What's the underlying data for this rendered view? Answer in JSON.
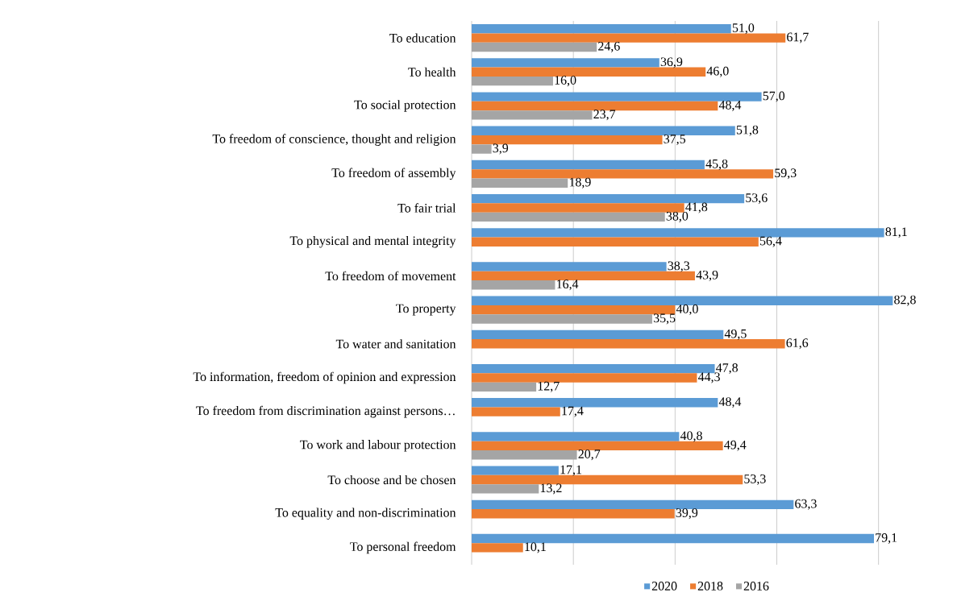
{
  "chart_data": {
    "type": "bar",
    "orientation": "horizontal",
    "categories": [
      "To education",
      "To health",
      "To social protection",
      "To freedom of conscience, thought and religion",
      "To freedom of assembly",
      "To fair trial",
      "To physical and mental integrity",
      "To freedom of movement",
      "To property",
      "To water and sanitation",
      "To information, freedom of opinion and expression",
      "To freedom from discrimination against persons…",
      "To work and labour protection",
      "To choose and be chosen",
      "To equality and non-discrimination",
      "To personal freedom"
    ],
    "series": [
      {
        "name": "2020",
        "color": "#5b9bd5",
        "values": [
          51.0,
          36.9,
          57.0,
          51.8,
          45.8,
          53.6,
          81.1,
          38.3,
          82.8,
          49.5,
          47.8,
          48.4,
          40.8,
          17.1,
          63.3,
          79.1
        ],
        "value_labels": [
          "51,0",
          "36,9",
          "57,0",
          "51,8",
          "45,8",
          "53,6",
          "81,1",
          "38,3",
          "82,8",
          "49,5",
          "47,8",
          "48,4",
          "40,8",
          "17,1",
          "63,3",
          "79,1"
        ]
      },
      {
        "name": "2018",
        "color": "#ed7d31",
        "values": [
          61.7,
          46.0,
          48.4,
          37.5,
          59.3,
          41.8,
          56.4,
          43.9,
          40.0,
          61.6,
          44.3,
          17.4,
          49.4,
          53.3,
          39.9,
          10.1
        ],
        "value_labels": [
          "61,7",
          "46,0",
          "48,4",
          "37,5",
          "59,3",
          "41,8",
          "56,4",
          "43,9",
          "40,0",
          "61,6",
          "44,3",
          "17,4",
          "49,4",
          "53,3",
          "39,9",
          "10,1"
        ]
      },
      {
        "name": "2016",
        "color": "#a5a5a5",
        "values": [
          24.6,
          16.0,
          23.7,
          3.9,
          18.9,
          38.0,
          null,
          16.4,
          35.5,
          null,
          12.7,
          null,
          20.7,
          13.2,
          null,
          null
        ],
        "value_labels": [
          "24,6",
          "16,0",
          "23,7",
          "3,9",
          "18,9",
          "38,0",
          null,
          "16,4",
          "35,5",
          null,
          "12,7",
          null,
          "20,7",
          "13,2",
          null,
          null
        ]
      }
    ],
    "xticks": [
      {
        "value": 0,
        "label": null
      },
      {
        "value": 20,
        "label": null
      },
      {
        "value": 40,
        "label": null
      },
      {
        "value": 60,
        "label": null
      },
      {
        "value": 80,
        "label": null
      }
    ],
    "grid": "x",
    "legend": "bottom"
  }
}
